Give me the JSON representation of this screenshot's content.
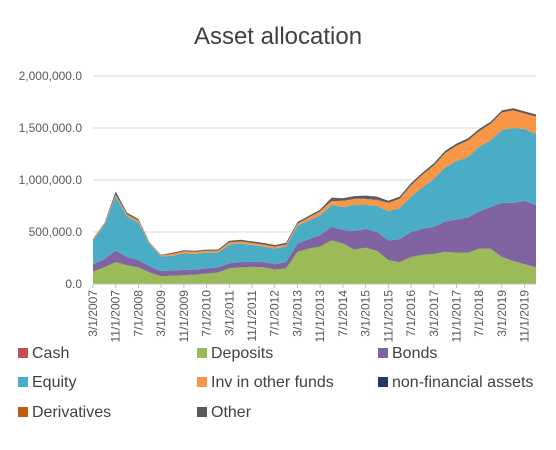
{
  "chart_data": {
    "type": "area",
    "stacked": true,
    "title": "Asset allocation",
    "xlabel": "",
    "ylabel": "",
    "ylim": [
      0,
      2000000
    ],
    "y_ticks": [
      0,
      500000,
      1000000,
      1500000,
      2000000
    ],
    "y_tick_labels": [
      "0.0",
      "500,000.0",
      "1,000,000.0",
      "1,500,000.0",
      "2,000,000.0"
    ],
    "x_tick_labels": [
      "3/1/2007",
      "11/1/2007",
      "7/1/2008",
      "3/1/2009",
      "11/1/2009",
      "7/1/2010",
      "3/1/2011",
      "11/1/2011",
      "7/1/2012",
      "3/1/2013",
      "11/1/2013",
      "7/1/2014",
      "3/1/2015",
      "11/1/2015",
      "7/1/2016",
      "3/1/2017",
      "11/1/2017",
      "7/1/2018",
      "3/1/2019",
      "11/1/2019"
    ],
    "x": [
      "3/1/2007",
      "7/1/2007",
      "11/1/2007",
      "3/1/2008",
      "7/1/2008",
      "11/1/2008",
      "3/1/2009",
      "7/1/2009",
      "11/1/2009",
      "3/1/2010",
      "7/1/2010",
      "11/1/2010",
      "3/1/2011",
      "7/1/2011",
      "11/1/2011",
      "3/1/2012",
      "7/1/2012",
      "11/1/2012",
      "3/1/2013",
      "7/1/2013",
      "11/1/2013",
      "3/1/2014",
      "7/1/2014",
      "11/1/2014",
      "3/1/2015",
      "7/1/2015",
      "11/1/2015",
      "3/1/2016",
      "7/1/2016",
      "11/1/2016",
      "3/1/2017",
      "7/1/2017",
      "11/1/2017",
      "3/1/2018",
      "7/1/2018",
      "11/1/2018",
      "3/1/2019",
      "7/1/2019",
      "11/1/2019",
      "3/1/2020"
    ],
    "legend_position": "bottom",
    "grid": true,
    "series": [
      {
        "name": "Cash",
        "color": "#C0504D",
        "values": [
          0,
          0,
          0,
          0,
          0,
          0,
          0,
          0,
          0,
          0,
          0,
          0,
          0,
          0,
          0,
          0,
          0,
          0,
          0,
          0,
          0,
          0,
          0,
          0,
          0,
          0,
          0,
          0,
          0,
          0,
          0,
          0,
          0,
          0,
          0,
          0,
          0,
          0,
          0,
          0
        ]
      },
      {
        "name": "Deposits",
        "color": "#9BBB59",
        "values": [
          120000,
          160000,
          210000,
          180000,
          160000,
          110000,
          75000,
          80000,
          85000,
          90000,
          100000,
          110000,
          150000,
          160000,
          165000,
          160000,
          140000,
          150000,
          310000,
          340000,
          360000,
          420000,
          390000,
          330000,
          350000,
          320000,
          230000,
          210000,
          260000,
          280000,
          290000,
          310000,
          300000,
          300000,
          340000,
          340000,
          260000,
          220000,
          190000,
          160000
        ]
      },
      {
        "name": "Bonds",
        "color": "#8064A2",
        "values": [
          70000,
          80000,
          110000,
          80000,
          70000,
          60000,
          50000,
          50000,
          50000,
          50000,
          50000,
          50000,
          50000,
          50000,
          50000,
          50000,
          50000,
          60000,
          80000,
          90000,
          110000,
          130000,
          130000,
          180000,
          180000,
          180000,
          190000,
          220000,
          240000,
          250000,
          260000,
          290000,
          320000,
          340000,
          360000,
          400000,
          520000,
          560000,
          610000,
          600000
        ]
      },
      {
        "name": "Equity",
        "color": "#4BACC6",
        "values": [
          230000,
          330000,
          520000,
          390000,
          360000,
          210000,
          140000,
          140000,
          160000,
          150000,
          150000,
          140000,
          180000,
          180000,
          160000,
          150000,
          150000,
          150000,
          170000,
          180000,
          190000,
          210000,
          220000,
          250000,
          230000,
          250000,
          280000,
          300000,
          340000,
          400000,
          460000,
          520000,
          560000,
          580000,
          620000,
          640000,
          700000,
          720000,
          690000,
          680000
        ]
      },
      {
        "name": "Inv in other funds",
        "color": "#F79646",
        "values": [
          10000,
          10000,
          20000,
          20000,
          20000,
          10000,
          10000,
          20000,
          20000,
          20000,
          20000,
          20000,
          20000,
          20000,
          20000,
          20000,
          20000,
          20000,
          20000,
          30000,
          40000,
          40000,
          60000,
          60000,
          60000,
          60000,
          80000,
          90000,
          110000,
          120000,
          130000,
          140000,
          150000,
          160000,
          150000,
          160000,
          170000,
          170000,
          150000,
          170000
        ]
      },
      {
        "name": "non-financial assets",
        "color": "#1F3864",
        "values": [
          0,
          0,
          15000,
          5000,
          5000,
          0,
          0,
          0,
          0,
          0,
          0,
          0,
          0,
          0,
          0,
          0,
          0,
          0,
          0,
          0,
          0,
          10000,
          5000,
          5000,
          5000,
          5000,
          0,
          0,
          0,
          0,
          0,
          0,
          0,
          0,
          0,
          0,
          0,
          0,
          0,
          0
        ]
      },
      {
        "name": "Derivatives",
        "color": "#C65911",
        "values": [
          0,
          0,
          0,
          0,
          0,
          0,
          0,
          0,
          0,
          0,
          0,
          0,
          0,
          0,
          0,
          0,
          0,
          0,
          0,
          0,
          0,
          0,
          0,
          0,
          0,
          0,
          0,
          0,
          0,
          0,
          0,
          0,
          0,
          0,
          0,
          0,
          0,
          0,
          0,
          0
        ]
      },
      {
        "name": "Other",
        "color": "#595959",
        "values": [
          5000,
          5000,
          15000,
          10000,
          10000,
          5000,
          5000,
          10000,
          10000,
          10000,
          10000,
          10000,
          15000,
          15000,
          15000,
          15000,
          15000,
          15000,
          15000,
          15000,
          15000,
          20000,
          20000,
          20000,
          25000,
          25000,
          20000,
          20000,
          20000,
          20000,
          20000,
          20000,
          20000,
          20000,
          20000,
          20000,
          20000,
          20000,
          20000,
          20000
        ]
      }
    ]
  }
}
